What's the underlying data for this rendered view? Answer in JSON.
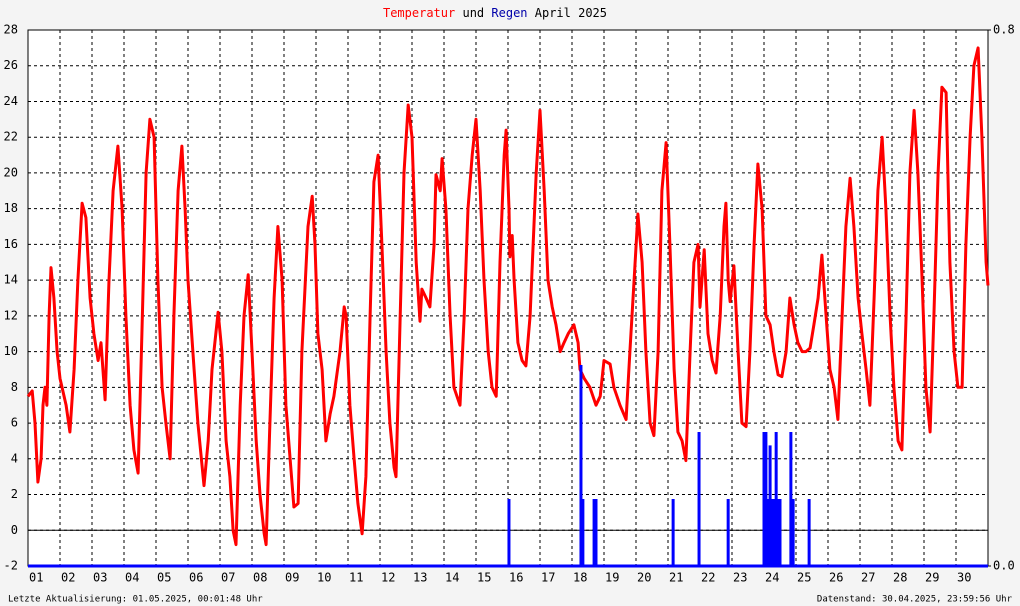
{
  "chart_data": {
    "type": "line",
    "title_connector": "und",
    "title": "April 2025",
    "footer_left": "Letzte Aktualisierung: 01.05.2025, 00:01:48 Uhr",
    "footer_right": "Datenstand: 30.04.2025, 23:59:56 Uhr",
    "xlim": [
      0,
      30
    ],
    "xticks": [
      {
        "value": 0,
        "label": "01"
      },
      {
        "value": 1,
        "label": "02"
      },
      {
        "value": 2,
        "label": "03"
      },
      {
        "value": 3,
        "label": "04"
      },
      {
        "value": 4,
        "label": "05"
      },
      {
        "value": 5,
        "label": "06"
      },
      {
        "value": 6,
        "label": "07"
      },
      {
        "value": 7,
        "label": "08"
      },
      {
        "value": 8,
        "label": "09"
      },
      {
        "value": 9,
        "label": "10"
      },
      {
        "value": 10,
        "label": "11"
      },
      {
        "value": 11,
        "label": "12"
      },
      {
        "value": 12,
        "label": "13"
      },
      {
        "value": 13,
        "label": "14"
      },
      {
        "value": 14,
        "label": "15"
      },
      {
        "value": 15,
        "label": "16"
      },
      {
        "value": 16,
        "label": "17"
      },
      {
        "value": 17,
        "label": "18"
      },
      {
        "value": 18,
        "label": "19"
      },
      {
        "value": 19,
        "label": "20"
      },
      {
        "value": 20,
        "label": "21"
      },
      {
        "value": 21,
        "label": "22"
      },
      {
        "value": 22,
        "label": "23"
      },
      {
        "value": 23,
        "label": "24"
      },
      {
        "value": 24,
        "label": "25"
      },
      {
        "value": 25,
        "label": "26"
      },
      {
        "value": 26,
        "label": "27"
      },
      {
        "value": 27,
        "label": "28"
      },
      {
        "value": 28,
        "label": "29"
      },
      {
        "value": 29,
        "label": "30"
      }
    ],
    "ylim": [
      -2,
      28
    ],
    "yticks": [
      -2,
      0,
      2,
      4,
      6,
      8,
      10,
      12,
      14,
      16,
      18,
      20,
      22,
      24,
      26,
      28
    ],
    "y2lim": [
      0,
      0.8
    ],
    "y2ticks": [
      {
        "value": 0,
        "label": "0.0"
      },
      {
        "value": 0.8,
        "label": "0.8"
      }
    ],
    "grid": true,
    "series": [
      {
        "name": "Temperatur",
        "color": "#ff0000",
        "x": [
          0,
          0.13,
          0.22,
          0.31,
          0.41,
          0.47,
          0.53,
          0.59,
          0.66,
          0.72,
          0.81,
          0.91,
          1.0,
          1.19,
          1.31,
          1.44,
          1.56,
          1.69,
          1.81,
          1.94,
          2.06,
          2.19,
          2.28,
          2.41,
          2.53,
          2.66,
          2.81,
          2.94,
          3.06,
          3.19,
          3.31,
          3.44,
          3.56,
          3.69,
          3.81,
          3.94,
          4.06,
          4.19,
          4.31,
          4.44,
          4.56,
          4.69,
          4.81,
          4.91,
          5.0,
          5.19,
          5.31,
          5.5,
          5.63,
          5.75,
          5.94,
          6.06,
          6.19,
          6.31,
          6.41,
          6.5,
          6.63,
          6.75,
          6.88,
          7.0,
          7.13,
          7.25,
          7.38,
          7.44,
          7.56,
          7.69,
          7.81,
          7.94,
          8.06,
          8.19,
          8.31,
          8.44,
          8.56,
          8.75,
          8.88,
          8.97,
          9.06,
          9.19,
          9.31,
          9.44,
          9.56,
          9.75,
          9.88,
          9.94,
          10.06,
          10.19,
          10.31,
          10.44,
          10.56,
          10.69,
          10.81,
          10.94,
          11.06,
          11.19,
          11.31,
          11.44,
          11.5,
          11.63,
          11.75,
          11.88,
          12.0,
          12.13,
          12.25,
          12.31,
          12.44,
          12.56,
          12.69,
          12.75,
          12.88,
          12.94,
          13.06,
          13.19,
          13.31,
          13.5,
          13.63,
          13.75,
          13.88,
          14.0,
          14.13,
          14.25,
          14.38,
          14.5,
          14.63,
          14.75,
          14.88,
          14.94,
          15.03,
          15.06,
          15.13,
          15.19,
          15.31,
          15.44,
          15.56,
          15.69,
          15.88,
          16.0,
          16.13,
          16.25,
          16.38,
          16.5,
          16.63,
          16.75,
          16.88,
          17.06,
          17.19,
          17.25,
          17.38,
          17.56,
          17.75,
          17.88,
          18.0,
          18.19,
          18.31,
          18.5,
          18.69,
          18.81,
          18.94,
          19.06,
          19.19,
          19.31,
          19.44,
          19.56,
          19.69,
          19.81,
          19.94,
          20.06,
          20.19,
          20.31,
          20.44,
          20.56,
          20.69,
          20.81,
          20.94,
          21.0,
          21.13,
          21.25,
          21.38,
          21.5,
          21.63,
          21.75,
          21.81,
          21.88,
          21.94,
          22.06,
          22.19,
          22.31,
          22.44,
          22.56,
          22.69,
          22.81,
          22.94,
          23.06,
          23.19,
          23.31,
          23.44,
          23.56,
          23.69,
          23.81,
          23.94,
          24.06,
          24.19,
          24.31,
          24.44,
          24.56,
          24.69,
          24.81,
          24.94,
          25.06,
          25.19,
          25.31,
          25.44,
          25.56,
          25.69,
          25.81,
          25.94,
          26.06,
          26.19,
          26.31,
          26.44,
          26.56,
          26.69,
          26.81,
          26.94,
          27.06,
          27.19,
          27.31,
          27.44,
          27.56,
          27.69,
          27.81,
          27.94,
          28.06,
          28.19,
          28.31,
          28.44,
          28.56,
          28.69,
          28.81,
          28.94,
          29.06,
          29.19,
          29.31,
          29.44,
          29.56,
          29.69,
          29.81,
          29.94,
          30.0
        ],
        "values": [
          7.5,
          7.8,
          6,
          2.7,
          4,
          7,
          8,
          7,
          12,
          14.7,
          13,
          10,
          8.5,
          7,
          5.5,
          9,
          14,
          18.3,
          17.5,
          13,
          11,
          9.5,
          10.5,
          7.3,
          14,
          19,
          21.5,
          18,
          12,
          7,
          4.5,
          3.2,
          11,
          20,
          23,
          22,
          14,
          8,
          6,
          4,
          12,
          19,
          21.5,
          18,
          14,
          9,
          6,
          2.5,
          5,
          9,
          12.2,
          10,
          5,
          3,
          0,
          -0.8,
          7,
          12,
          14.3,
          10,
          5,
          2,
          -0.2,
          -0.8,
          6,
          13,
          17,
          14,
          7,
          4,
          1.3,
          1.5,
          10,
          17,
          18.7,
          16,
          11,
          9,
          5,
          6.5,
          7.5,
          10,
          12.5,
          12,
          7,
          4,
          1.5,
          -0.2,
          3,
          12,
          19.5,
          21,
          16,
          10,
          6,
          3.5,
          3,
          12,
          20,
          23.8,
          22,
          15,
          11.7,
          13.5,
          13,
          12.5,
          16,
          19.9,
          19,
          20.8,
          18,
          12,
          8,
          7,
          12,
          18,
          21,
          23,
          19,
          14,
          10,
          8,
          7.5,
          15,
          21,
          22.4,
          18,
          15.3,
          16.5,
          14,
          10.5,
          9.5,
          9.2,
          12,
          20,
          23.5,
          19,
          14,
          12.5,
          11.5,
          10,
          10.5,
          11,
          11.5,
          10.5,
          9,
          8.5,
          8,
          7,
          7.5,
          9.5,
          9.3,
          8,
          7,
          6.2,
          10,
          14,
          17.7,
          15,
          10,
          6,
          5.3,
          10,
          19,
          21.7,
          16,
          9,
          5.5,
          5,
          3.9,
          10,
          15,
          16,
          12.5,
          15.7,
          11,
          9.5,
          8.8,
          12,
          17,
          18.3,
          14,
          12.8,
          14.8,
          10,
          6,
          5.8,
          10,
          16,
          20.5,
          18,
          12,
          11.5,
          10,
          8.7,
          8.6,
          10,
          13,
          11.5,
          10.5,
          10,
          10,
          10.2,
          11.5,
          13,
          15.4,
          12,
          9,
          8,
          6.2,
          12,
          17,
          19.7,
          17,
          13,
          11,
          9,
          7,
          13,
          19,
          22,
          18,
          12,
          8,
          5,
          4.5,
          12,
          20,
          23.5,
          20,
          14,
          8,
          5.5,
          12,
          20,
          24.8,
          24.5,
          15,
          10,
          8,
          8,
          16,
          22,
          26,
          27,
          22,
          15,
          13.7
        ]
      },
      {
        "name": "Regen",
        "color": "#0000ff",
        "axis": "y2",
        "type": "bar",
        "x": [
          15.03,
          17.28,
          17.34,
          17.69,
          17.75,
          20.16,
          20.97,
          21.88,
          23.0,
          23.06,
          23.13,
          23.19,
          23.25,
          23.31,
          23.38,
          23.44,
          23.5,
          23.84,
          23.91,
          24.41
        ],
        "values": [
          0.1,
          0.3,
          0.1,
          0.1,
          0.1,
          0.1,
          0.2,
          0.1,
          0.2,
          0.2,
          0.1,
          0.18,
          0.1,
          0.1,
          0.2,
          0.1,
          0.1,
          0.2,
          0.1,
          0.1
        ]
      }
    ]
  }
}
